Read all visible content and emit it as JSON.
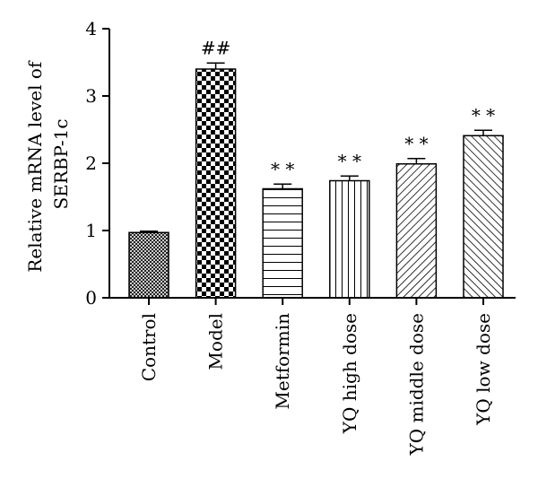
{
  "chart_data": {
    "type": "bar",
    "categories": [
      "Control",
      "Model",
      "Metformin",
      "YQ high dose",
      "YQ middle dose",
      "YQ low dose"
    ],
    "values": [
      0.97,
      3.4,
      1.62,
      1.74,
      1.99,
      2.41
    ],
    "errors": [
      0.02,
      0.09,
      0.07,
      0.07,
      0.08,
      0.08
    ],
    "annotations": [
      "",
      "##",
      "* *",
      "* *",
      "* *",
      "* *"
    ],
    "patterns": [
      "fine-crosshatch",
      "checkerboard",
      "horizontal-lines",
      "vertical-lines",
      "diagonal-forward",
      "diagonal-back"
    ],
    "ylabel_lines": [
      "Relative mRNA level of",
      "SERBP-1c"
    ],
    "ylim": [
      0,
      4
    ],
    "yticks": [
      "0",
      "1",
      "2",
      "3",
      "4"
    ],
    "grid": false,
    "colors": {
      "bar_stroke": "#000000",
      "fill": "#000000",
      "background": "#ffffff"
    }
  }
}
